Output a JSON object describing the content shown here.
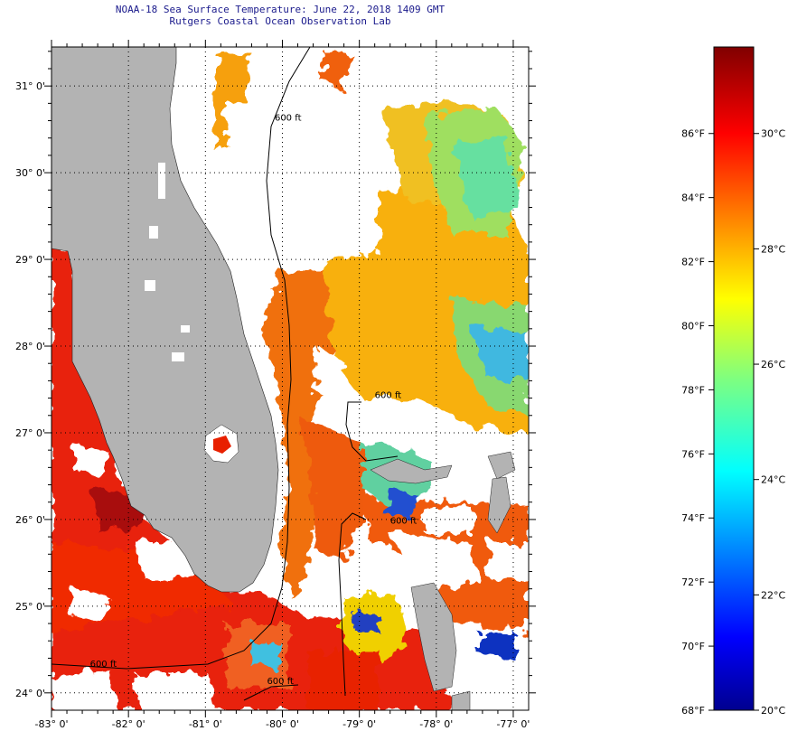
{
  "header": {
    "title": "NOAA-18 Sea Surface Temperature:  June 22, 2018 1409 GMT",
    "subtitle": "Rutgers Coastal Ocean Observation Lab"
  },
  "map": {
    "lon_range": [
      -83,
      -76.8
    ],
    "lat_range": [
      23.8,
      31.45
    ],
    "lat_ticks": [
      {
        "value": 24,
        "label": "24° 0'"
      },
      {
        "value": 25,
        "label": "25° 0'"
      },
      {
        "value": 26,
        "label": "26° 0'"
      },
      {
        "value": 27,
        "label": "27° 0'"
      },
      {
        "value": 28,
        "label": "28° 0'"
      },
      {
        "value": 29,
        "label": "29° 0'"
      },
      {
        "value": 30,
        "label": "30° 0'"
      },
      {
        "value": 31,
        "label": "31° 0'"
      }
    ],
    "lon_ticks": [
      {
        "value": -83,
        "label": "-83° 0'"
      },
      {
        "value": -82,
        "label": "-82° 0'"
      },
      {
        "value": -81,
        "label": "-81° 0'"
      },
      {
        "value": -80,
        "label": "-80° 0'"
      },
      {
        "value": -79,
        "label": "-79° 0'"
      },
      {
        "value": -78,
        "label": "-78° 0'"
      },
      {
        "value": -77,
        "label": "-77° 0'"
      }
    ],
    "contour_labels": [
      {
        "label": "600 ft",
        "lon": -80.1,
        "lat": 30.6
      },
      {
        "label": "600 ft",
        "lon": -78.8,
        "lat": 27.4
      },
      {
        "label": "600 ft",
        "lon": -78.6,
        "lat": 25.95
      },
      {
        "label": "600 ft",
        "lon": -82.5,
        "lat": 24.3
      },
      {
        "label": "600 ft",
        "lon": -80.2,
        "lat": 24.1
      }
    ],
    "colors": {
      "land": "#b3b3b3",
      "no_data": "#ffffff"
    }
  },
  "colorbar": {
    "min_f": 68,
    "max_f": 88.7,
    "fahrenheit_ticks": [
      {
        "value": 68,
        "label": "68°F"
      },
      {
        "value": 70,
        "label": "70°F"
      },
      {
        "value": 72,
        "label": "72°F"
      },
      {
        "value": 74,
        "label": "74°F"
      },
      {
        "value": 76,
        "label": "76°F"
      },
      {
        "value": 78,
        "label": "78°F"
      },
      {
        "value": 80,
        "label": "80°F"
      },
      {
        "value": 82,
        "label": "82°F"
      },
      {
        "value": 84,
        "label": "84°F"
      },
      {
        "value": 86,
        "label": "86°F"
      }
    ],
    "celsius_ticks": [
      {
        "value_f": 68,
        "label": "20°C"
      },
      {
        "value_f": 71.6,
        "label": "22°C"
      },
      {
        "value_f": 75.2,
        "label": "24°C"
      },
      {
        "value_f": 78.8,
        "label": "26°C"
      },
      {
        "value_f": 82.4,
        "label": "28°C"
      },
      {
        "value_f": 86,
        "label": "30°C"
      }
    ]
  }
}
